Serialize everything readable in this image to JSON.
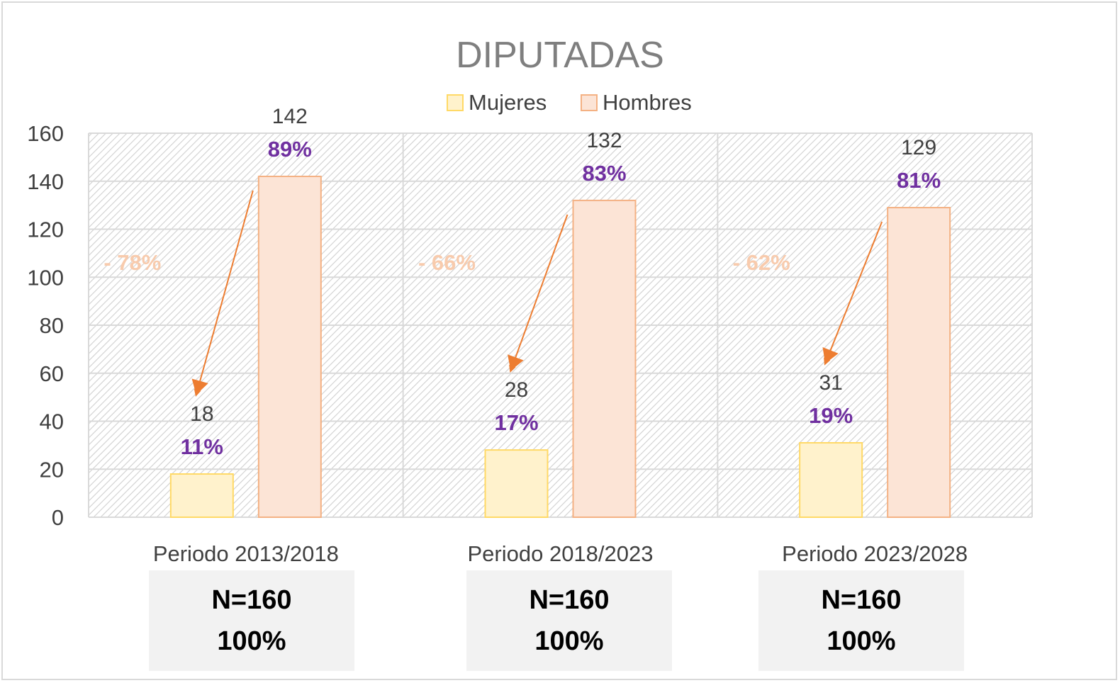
{
  "chart_data": {
    "type": "bar",
    "title": "DIPUTADAS",
    "categories": [
      "Periodo 2013/2018",
      "Periodo 2018/2023",
      "Periodo 2023/2028"
    ],
    "series": [
      {
        "name": "Mujeres",
        "values": [
          18,
          28,
          31
        ],
        "percent_labels": [
          "11%",
          "17%",
          "19%"
        ],
        "fill": "#fff2cc",
        "stroke": "#ffd966"
      },
      {
        "name": "Hombres",
        "values": [
          142,
          132,
          129
        ],
        "percent_labels": [
          "89%",
          "83%",
          "81%"
        ],
        "fill": "#fce4d6",
        "stroke": "#f4b183"
      }
    ],
    "gap_labels": [
      "- 78%",
      "- 66%",
      "- 62%"
    ],
    "ylim": [
      0,
      160
    ],
    "yticks": [
      0,
      20,
      40,
      60,
      80,
      100,
      120,
      140,
      160
    ],
    "grid": true,
    "legend_position": "top",
    "colors": {
      "percent_label": "#7030a0",
      "gap_label": "#f8cbad",
      "arrow": "#ed7d31",
      "title": "#7f7f7f",
      "axis_text": "#404040",
      "plot_pattern": "#d9d9d9"
    }
  },
  "totals": [
    {
      "n": "N=160",
      "pct": "100%"
    },
    {
      "n": "N=160",
      "pct": "100%"
    },
    {
      "n": "N=160",
      "pct": "100%"
    }
  ]
}
